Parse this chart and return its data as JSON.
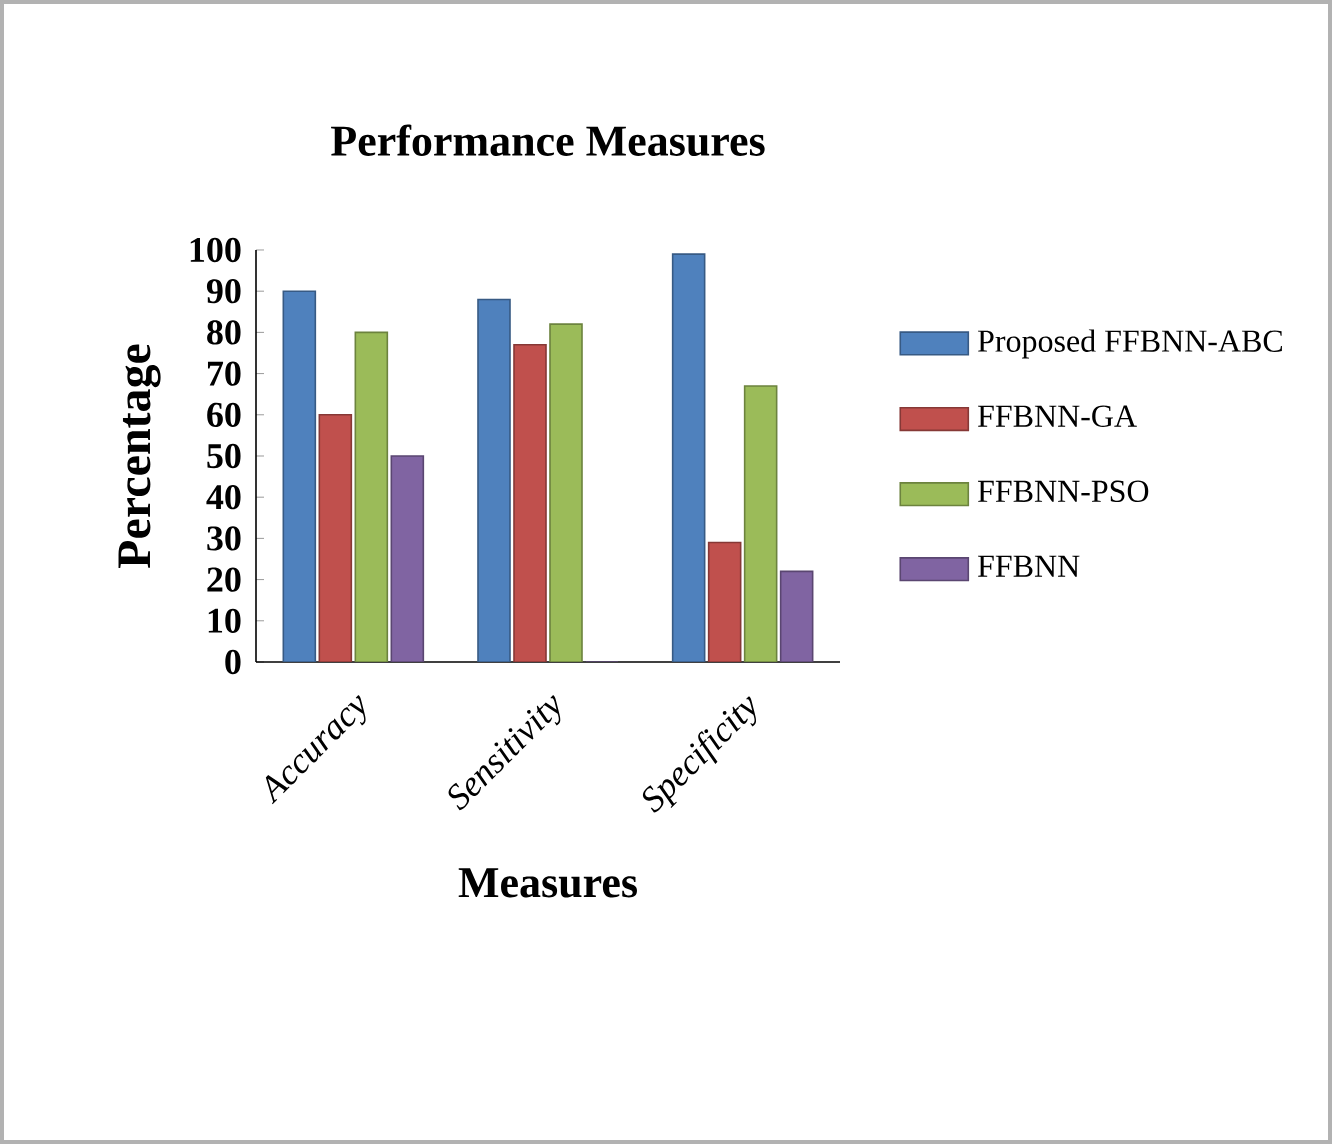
{
  "chart_data": {
    "type": "bar",
    "title": "Performance Measures",
    "xlabel": "Measures",
    "ylabel": "Percentage",
    "categories": [
      "Accuracy",
      "Sensitivity",
      "Specificity"
    ],
    "series": [
      {
        "name": "Proposed FFBNN-ABC",
        "color": "#4f81bd",
        "values": [
          90,
          88,
          99
        ]
      },
      {
        "name": "FFBNN-GA",
        "color": "#c0504d",
        "values": [
          60,
          77,
          29
        ]
      },
      {
        "name": "FFBNN-PSO",
        "color": "#9bbb59",
        "values": [
          80,
          82,
          67
        ]
      },
      {
        "name": "FFBNN",
        "color": "#8064a2",
        "values": [
          50,
          0,
          22
        ]
      }
    ],
    "ylim": [
      0,
      100
    ],
    "yticks": [
      0,
      10,
      20,
      30,
      40,
      50,
      60,
      70,
      80,
      90,
      100
    ],
    "legend": "right",
    "grid": false
  }
}
